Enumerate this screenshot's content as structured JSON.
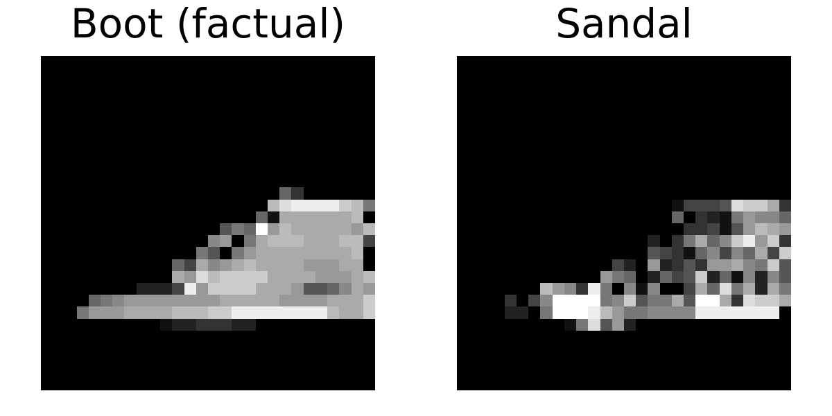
{
  "panels": [
    {
      "title": "Boot (factual)",
      "pixels": [
        "0000000000000000000000000000",
        "0000000000000000000000000000",
        "0000000000000000000000000000",
        "0000000000000000000000000000",
        "0000000000000000000000000000",
        "0000000000000000000000000000",
        "0000000000000000000000000000",
        "0000000000000000000063000000",
        "0000000000000000000BDEEEECB740",
        "00000000000000000061AAAAAAB000",
        "000000000000000576F9BAAAAA9B00",
        "000000000000008907ABBBAAABB400",
        "000000000000075079AAAAAAAAB000",
        "0000000000064A89ABAAAA999AA000",
        "00000000000A9DBCCCCAAAA999AB00",
        "000000002224E9CCCCAAA95568A900",
        "000067899999999AAAAA9999AAAC00",
        "0007999AAAABBBCCEEEEEEEEBAAC00",
        "00000000001223332200000000000",
        "0000000000000000000000000000"
      ]
    },
    {
      "title": "Sandal",
      "pixels": [
        "0000000000000000000000000000",
        "0000000000000000000000000000",
        "0000000000000000000000000000",
        "0000000000000000000000000000",
        "0000000000000000000000000000",
        "0000000000000000000000000000",
        "0000000000000000000000000000",
        "0000000000000000000000000000",
        "00000000000000000014445DCCA322",
        "000000000000000000603217988651",
        "0000000000000000000334159BA9A4",
        "00000000000000002037A68CE9C30",
        "0000000000000000543168486A4C3",
        "00000000000004209235399A87C56",
        "00000000000097602645C2618285A3",
        "0000000B983E70818004A6D7A2A7C",
        "00003048FFFF78C577A5FFA3DCCAF",
        "00002207FFFEB9778888EEEEEEE0",
        "00000000017D5920000000000000",
        "0000000000000000000000000000"
      ]
    }
  ]
}
